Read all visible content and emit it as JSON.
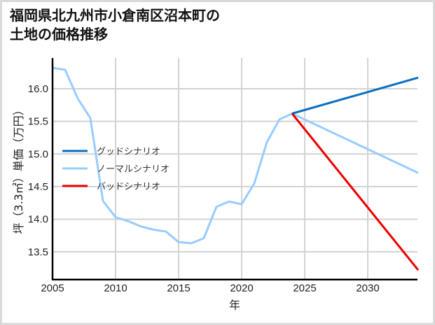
{
  "title_line1": "福岡県北九州市小倉南区沼本町の",
  "title_line2": "土地の価格推移",
  "chart_data": {
    "type": "line",
    "title": "福岡県北九州市小倉南区沼本町の土地の価格推移",
    "xlabel": "年",
    "ylabel": "坪（3.3㎡）単価（万円）",
    "xlim": [
      2005,
      2034
    ],
    "ylim": [
      13.1,
      16.5
    ],
    "x_ticks": [
      2005,
      2010,
      2015,
      2020,
      2025,
      2030
    ],
    "y_ticks": [
      13.5,
      14.0,
      14.5,
      15.0,
      15.5,
      16.0
    ],
    "grid": true,
    "legend_position": "center-left",
    "series": [
      {
        "name": "グッドシナリオ",
        "color": "#0a6fc2",
        "x": [
          2024,
          2034
        ],
        "values": [
          15.62,
          16.17
        ]
      },
      {
        "name": "ノーマルシナリオ",
        "color": "#99ccff",
        "x": [
          2005,
          2006,
          2007,
          2008,
          2009,
          2010,
          2011,
          2012,
          2013,
          2014,
          2015,
          2016,
          2017,
          2018,
          2019,
          2020,
          2021,
          2022,
          2023,
          2024,
          2034
        ],
        "values": [
          16.32,
          16.29,
          15.85,
          15.55,
          14.28,
          14.03,
          13.97,
          13.89,
          13.84,
          13.81,
          13.65,
          13.63,
          13.71,
          14.19,
          14.27,
          14.23,
          14.55,
          15.18,
          15.53,
          15.62,
          14.71
        ]
      },
      {
        "name": "バッドシナリオ",
        "color": "#ee0000",
        "x": [
          2024,
          2034
        ],
        "values": [
          15.62,
          13.22
        ]
      }
    ]
  }
}
